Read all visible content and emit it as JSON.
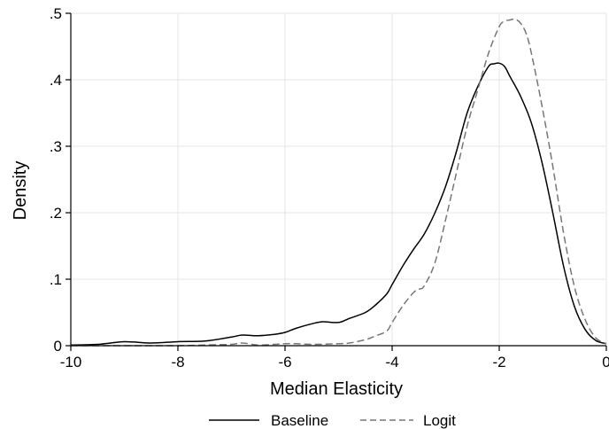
{
  "chart_data": {
    "type": "line",
    "xlabel": "Median Elasticity",
    "ylabel": "Density",
    "xlim": [
      -10,
      0
    ],
    "ylim": [
      0,
      0.5
    ],
    "x_ticks": [
      -10,
      -8,
      -6,
      -4,
      -2,
      0
    ],
    "x_tick_labels": [
      "-10",
      "-8",
      "-6",
      "-4",
      "-2",
      "0"
    ],
    "y_ticks": [
      0,
      0.1,
      0.2,
      0.3,
      0.4,
      0.5
    ],
    "y_tick_labels": [
      "0",
      ".1",
      ".2",
      ".3",
      ".4",
      ".5"
    ],
    "grid": true,
    "legend_position": "bottom",
    "series": [
      {
        "name": "Baseline",
        "color": "#000000",
        "style": "solid",
        "x": [
          -10,
          -9.5,
          -9,
          -8.5,
          -8,
          -7.5,
          -7,
          -6.8,
          -6.5,
          -6.2,
          -6,
          -5.8,
          -5.5,
          -5.3,
          -5,
          -4.8,
          -4.5,
          -4.3,
          -4.1,
          -4,
          -3.8,
          -3.6,
          -3.4,
          -3.2,
          -3,
          -2.8,
          -2.6,
          -2.4,
          -2.2,
          -2.1,
          -2,
          -1.9,
          -1.8,
          -1.6,
          -1.4,
          -1.2,
          -1,
          -0.8,
          -0.6,
          -0.4,
          -0.2,
          0
        ],
        "y": [
          0.001,
          0.002,
          0.006,
          0.004,
          0.006,
          0.007,
          0.013,
          0.016,
          0.015,
          0.017,
          0.02,
          0.026,
          0.033,
          0.036,
          0.035,
          0.041,
          0.05,
          0.062,
          0.078,
          0.092,
          0.12,
          0.145,
          0.168,
          0.2,
          0.24,
          0.292,
          0.35,
          0.39,
          0.42,
          0.424,
          0.425,
          0.42,
          0.405,
          0.375,
          0.335,
          0.275,
          0.2,
          0.12,
          0.06,
          0.025,
          0.008,
          0.003
        ]
      },
      {
        "name": "Logit",
        "color": "#777777",
        "style": "dashed",
        "x": [
          -10,
          -9.5,
          -9,
          -8.5,
          -8,
          -7.5,
          -7,
          -6.8,
          -6.5,
          -6.2,
          -6,
          -5.8,
          -5.5,
          -5,
          -4.8,
          -4.5,
          -4.3,
          -4.1,
          -4,
          -3.8,
          -3.6,
          -3.5,
          -3.4,
          -3.2,
          -3,
          -2.8,
          -2.6,
          -2.4,
          -2.2,
          -2,
          -1.9,
          -1.8,
          -1.7,
          -1.6,
          -1.5,
          -1.4,
          -1.2,
          -1,
          -0.8,
          -0.6,
          -0.4,
          -0.2,
          0
        ],
        "y": [
          0.0,
          0.0,
          0.0,
          0.0,
          0.0,
          0.001,
          0.002,
          0.004,
          0.001,
          0.002,
          0.003,
          0.003,
          0.002,
          0.003,
          0.004,
          0.009,
          0.015,
          0.022,
          0.035,
          0.06,
          0.08,
          0.085,
          0.09,
          0.125,
          0.19,
          0.26,
          0.33,
          0.385,
          0.44,
          0.48,
          0.488,
          0.49,
          0.491,
          0.485,
          0.47,
          0.44,
          0.36,
          0.27,
          0.17,
          0.09,
          0.04,
          0.012,
          0.003
        ]
      }
    ]
  }
}
